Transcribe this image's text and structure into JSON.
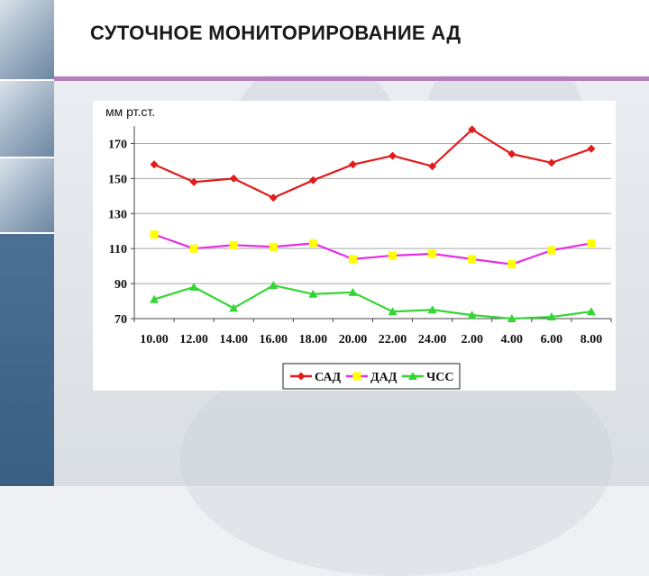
{
  "title": "СУТОЧНОЕ МОНИТОРИРОВАНИЕ АД",
  "colors": {
    "accent_bar": "#b57fbf",
    "sad": "#e21b1b",
    "dad": "#e62de6",
    "chss": "#33d633",
    "dad_marker": "#ffff00"
  },
  "chart_data": {
    "type": "line",
    "ylabel": "мм рт.ст.",
    "categories": [
      "10.00",
      "12.00",
      "14.00",
      "16.00",
      "18.00",
      "20.00",
      "22.00",
      "24.00",
      "2.00",
      "4.00",
      "6.00",
      "8.00"
    ],
    "ylim": [
      70,
      180
    ],
    "yticks": [
      70,
      90,
      110,
      130,
      150,
      170
    ],
    "grid": true,
    "legend_position": "bottom",
    "series": [
      {
        "name": "САД",
        "marker": "diamond",
        "values": [
          158,
          148,
          150,
          139,
          149,
          158,
          163,
          157,
          178,
          164,
          159,
          167
        ]
      },
      {
        "name": "ДАД",
        "marker": "square",
        "values": [
          118,
          110,
          112,
          111,
          113,
          104,
          106,
          107,
          104,
          101,
          109,
          113
        ]
      },
      {
        "name": "ЧСС",
        "marker": "triangle",
        "values": [
          81,
          88,
          76,
          89,
          84,
          85,
          74,
          75,
          72,
          70,
          71,
          74
        ]
      }
    ]
  }
}
